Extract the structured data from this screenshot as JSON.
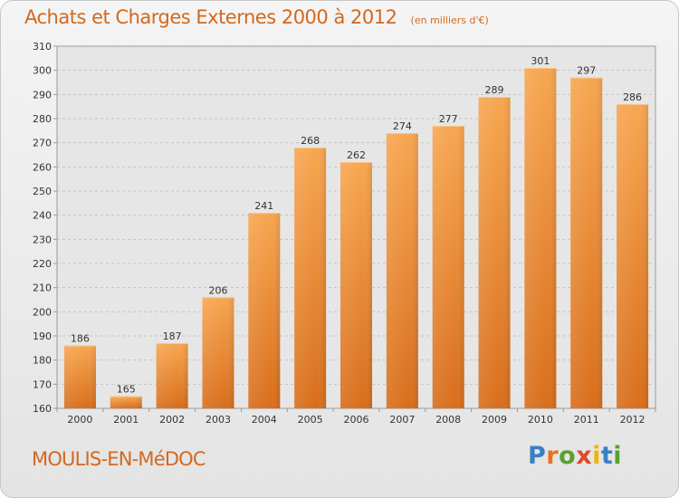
{
  "chart_data": {
    "type": "bar",
    "title": "Achats et Charges Externes 2000 à 2012",
    "unit_label": "(en milliers d'€)",
    "categories": [
      "2000",
      "2001",
      "2002",
      "2003",
      "2004",
      "2005",
      "2006",
      "2007",
      "2008",
      "2009",
      "2010",
      "2011",
      "2012"
    ],
    "values": [
      186,
      165,
      187,
      206,
      241,
      268,
      262,
      274,
      277,
      289,
      301,
      297,
      286
    ],
    "ylim": [
      160,
      310
    ],
    "yticks": [
      160,
      170,
      180,
      190,
      200,
      210,
      220,
      230,
      240,
      250,
      260,
      270,
      280,
      290,
      300,
      310
    ],
    "grid": true,
    "bar_color_top": "#f7a650",
    "bar_color_bottom": "#d86e1c",
    "xlabel": "",
    "ylabel": ""
  },
  "footer": {
    "commune": "MOULIS-EN-MéDOC",
    "logo_letters": [
      "P",
      "r",
      "o",
      "x",
      "i",
      "t",
      "i"
    ],
    "logo_colors": [
      "#3a7fc4",
      "#e8731e",
      "#5aa02c",
      "#e04a2a",
      "#f0b400",
      "#3a7fc4",
      "#5aa02c"
    ]
  }
}
